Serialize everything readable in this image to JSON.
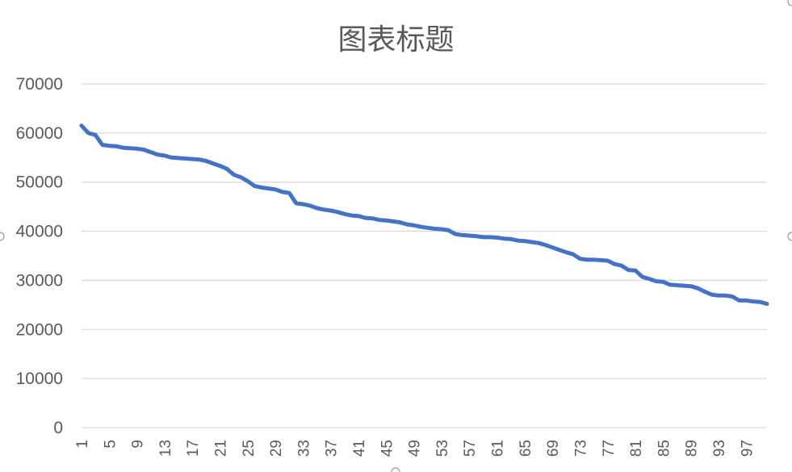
{
  "chart_data": {
    "type": "line",
    "title": "图表标题",
    "xlabel": "",
    "ylabel": "",
    "ylim": [
      0,
      70000
    ],
    "yticks": [
      0,
      10000,
      20000,
      30000,
      40000,
      50000,
      60000,
      70000
    ],
    "xticks": [
      1,
      5,
      9,
      13,
      17,
      21,
      25,
      29,
      33,
      37,
      41,
      45,
      49,
      53,
      57,
      61,
      65,
      69,
      73,
      77,
      81,
      85,
      89,
      93,
      97
    ],
    "grid": true,
    "legend": "none",
    "color": "#4472C4",
    "series": [
      {
        "x": [
          1,
          2,
          3,
          4,
          5,
          6,
          7,
          8,
          9,
          10,
          11,
          12,
          13,
          14,
          15,
          16,
          17,
          18,
          19,
          20,
          21,
          22,
          23,
          24,
          25,
          26,
          27,
          28,
          29,
          30,
          31,
          32,
          33,
          34,
          35,
          36,
          37,
          38,
          39,
          40,
          41,
          42,
          43,
          44,
          45,
          46,
          47,
          48,
          49,
          50,
          51,
          52,
          53,
          54,
          55,
          56,
          57,
          58,
          59,
          60,
          61,
          62,
          63,
          64,
          65,
          66,
          67,
          68,
          69,
          70,
          71,
          72,
          73,
          74,
          75,
          76,
          77,
          78,
          79,
          80,
          81,
          82,
          83,
          84,
          85,
          86,
          87,
          88,
          89,
          90,
          91,
          92,
          93,
          94,
          95,
          96,
          97,
          98,
          99,
          100
        ],
        "values": [
          61500,
          60000,
          59600,
          57600,
          57400,
          57300,
          57000,
          56900,
          56800,
          56600,
          56100,
          55600,
          55400,
          55000,
          54900,
          54800,
          54700,
          54600,
          54300,
          53800,
          53300,
          52700,
          51500,
          51000,
          50200,
          49200,
          48900,
          48700,
          48500,
          48000,
          47800,
          45700,
          45500,
          45200,
          44700,
          44400,
          44200,
          43900,
          43500,
          43200,
          43100,
          42700,
          42600,
          42300,
          42200,
          42000,
          41800,
          41400,
          41200,
          40900,
          40700,
          40500,
          40400,
          40200,
          39400,
          39200,
          39100,
          39000,
          38800,
          38800,
          38700,
          38500,
          38400,
          38100,
          38000,
          37800,
          37600,
          37200,
          36700,
          36200,
          35700,
          35300,
          34400,
          34200,
          34200,
          34100,
          34000,
          33300,
          33000,
          32100,
          32000,
          30700,
          30300,
          29800,
          29700,
          29100,
          29000,
          28900,
          28800,
          28400,
          27700,
          27100,
          26900,
          26900,
          26700,
          25900,
          25900,
          25700,
          25600,
          25200
        ]
      }
    ]
  }
}
